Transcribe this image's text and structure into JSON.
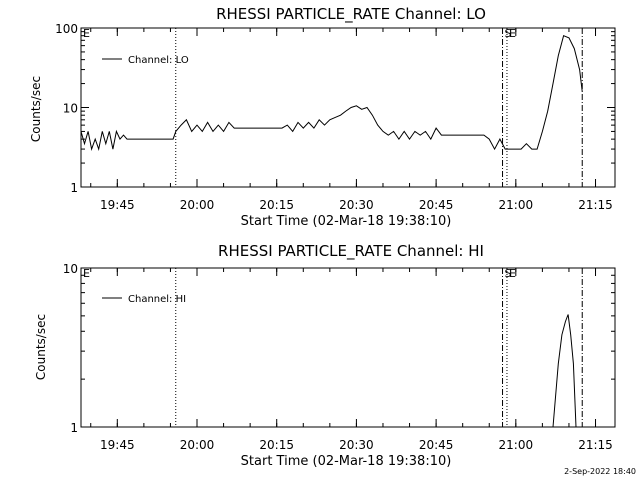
{
  "chart_data": [
    {
      "type": "line",
      "title": "RHESSI PARTICLE_RATE Channel: LO",
      "xlabel": "Start Time (02-Mar-18 19:38:10)",
      "ylabel": "Counts/sec",
      "yscale": "log",
      "ylim": [
        1,
        100
      ],
      "y_ticks": [
        1,
        10,
        100
      ],
      "y_tick_labels": [
        "1",
        "10",
        "100"
      ],
      "x_ticks": [
        "19:45",
        "20:00",
        "20:15",
        "20:30",
        "20:45",
        "21:00",
        "21:15"
      ],
      "legend": {
        "position": "top-left"
      },
      "series": [
        {
          "name": "Channel: LO",
          "x": [
            "19:38:10",
            "19:38:50",
            "19:39:30",
            "19:40:10",
            "19:40:50",
            "19:41:30",
            "19:42:10",
            "19:42:50",
            "19:43:30",
            "19:44:10",
            "19:44:50",
            "19:45:30",
            "19:46:10",
            "19:46:50",
            "19:48:00",
            "19:50:00",
            "19:52:00",
            "19:54:00",
            "19:55:30",
            "19:56:00",
            "19:57:00",
            "19:58:00",
            "19:59:00",
            "20:00:00",
            "20:01:00",
            "20:02:00",
            "20:03:00",
            "20:04:00",
            "20:05:00",
            "20:06:00",
            "20:07:00",
            "20:08:00",
            "20:10:00",
            "20:12:00",
            "20:14:00",
            "20:16:00",
            "20:17:00",
            "20:18:00",
            "20:19:00",
            "20:20:00",
            "20:21:00",
            "20:22:00",
            "20:23:00",
            "20:24:00",
            "20:25:00",
            "20:26:00",
            "20:27:00",
            "20:28:00",
            "20:29:00",
            "20:30:00",
            "20:31:00",
            "20:32:00",
            "20:33:00",
            "20:34:00",
            "20:35:00",
            "20:36:00",
            "20:37:00",
            "20:38:00",
            "20:39:00",
            "20:40:00",
            "20:41:00",
            "20:42:00",
            "20:43:00",
            "20:44:00",
            "20:45:00",
            "20:46:00",
            "20:47:00",
            "20:48:00",
            "20:49:00",
            "20:50:00",
            "20:51:00",
            "20:52:00",
            "20:53:00",
            "20:54:00",
            "20:55:00",
            "20:56:00",
            "20:57:00",
            "20:58:00",
            "20:59:00",
            "21:00:00",
            "21:01:00",
            "21:02:00",
            "21:03:00",
            "21:04:00",
            "21:05:00",
            "21:06:00",
            "21:07:00",
            "21:08:00",
            "21:09:00",
            "21:10:00",
            "21:11:00",
            "21:12:00",
            "21:12:30"
          ],
          "y": [
            5,
            3.5,
            5,
            3,
            4,
            3,
            5,
            3.5,
            5,
            3,
            5,
            4,
            4.5,
            4,
            4,
            4,
            4,
            4,
            4,
            5,
            6,
            7,
            5,
            6,
            5,
            6.5,
            5,
            6,
            5,
            6.5,
            5.5,
            5.5,
            5.5,
            5.5,
            5.5,
            5.5,
            6,
            5,
            6.5,
            5.5,
            6.5,
            5.5,
            7,
            6,
            7,
            7.5,
            8,
            9,
            10,
            10.5,
            9.5,
            10,
            8,
            6,
            5,
            4.5,
            5,
            4,
            5,
            4,
            5,
            4.5,
            5,
            4,
            5.5,
            4.5,
            4.5,
            4.5,
            4.5,
            4.5,
            4.5,
            4.5,
            4.5,
            4.5,
            4,
            3,
            4,
            3,
            3,
            3,
            3,
            3.5,
            3,
            3,
            5,
            9,
            20,
            45,
            80,
            75,
            55,
            30,
            16
          ]
        }
      ],
      "markers": [
        {
          "x": "19:38:10",
          "style": "dash-dot",
          "label": "E"
        },
        {
          "x": "19:56:00",
          "style": "dotted",
          "label": ""
        },
        {
          "x": "20:57:30",
          "style": "dash-dot",
          "label": "S"
        },
        {
          "x": "20:58:20",
          "style": "dotted",
          "label": "E"
        },
        {
          "x": "21:12:30",
          "style": "dash-dot",
          "label": ""
        }
      ]
    },
    {
      "type": "line",
      "title": "RHESSI PARTICLE_RATE Channel: HI",
      "xlabel": "Start Time (02-Mar-18 19:38:10)",
      "ylabel": "Counts/sec",
      "yscale": "log",
      "ylim": [
        1,
        10
      ],
      "y_ticks": [
        1,
        10
      ],
      "y_tick_labels": [
        "1",
        "10"
      ],
      "x_ticks": [
        "19:45",
        "20:00",
        "20:15",
        "20:30",
        "20:45",
        "21:00",
        "21:15"
      ],
      "legend": {
        "position": "top-left"
      },
      "series": [
        {
          "name": "Channel: HI",
          "x": [
            "21:07:00",
            "21:08:00",
            "21:08:40",
            "21:09:20",
            "21:09:50",
            "21:10:20",
            "21:10:50",
            "21:11:20"
          ],
          "y": [
            1,
            2.5,
            3.8,
            4.6,
            5.1,
            3.8,
            2.5,
            1
          ]
        }
      ],
      "markers": [
        {
          "x": "19:38:10",
          "style": "dash-dot",
          "label": "E"
        },
        {
          "x": "19:56:00",
          "style": "dotted",
          "label": ""
        },
        {
          "x": "20:57:30",
          "style": "dash-dot",
          "label": "S"
        },
        {
          "x": "20:58:20",
          "style": "dotted",
          "label": "E"
        },
        {
          "x": "21:12:30",
          "style": "dash-dot",
          "label": ""
        }
      ]
    }
  ],
  "footer": {
    "timestamp": "2-Sep-2022 18:40"
  }
}
